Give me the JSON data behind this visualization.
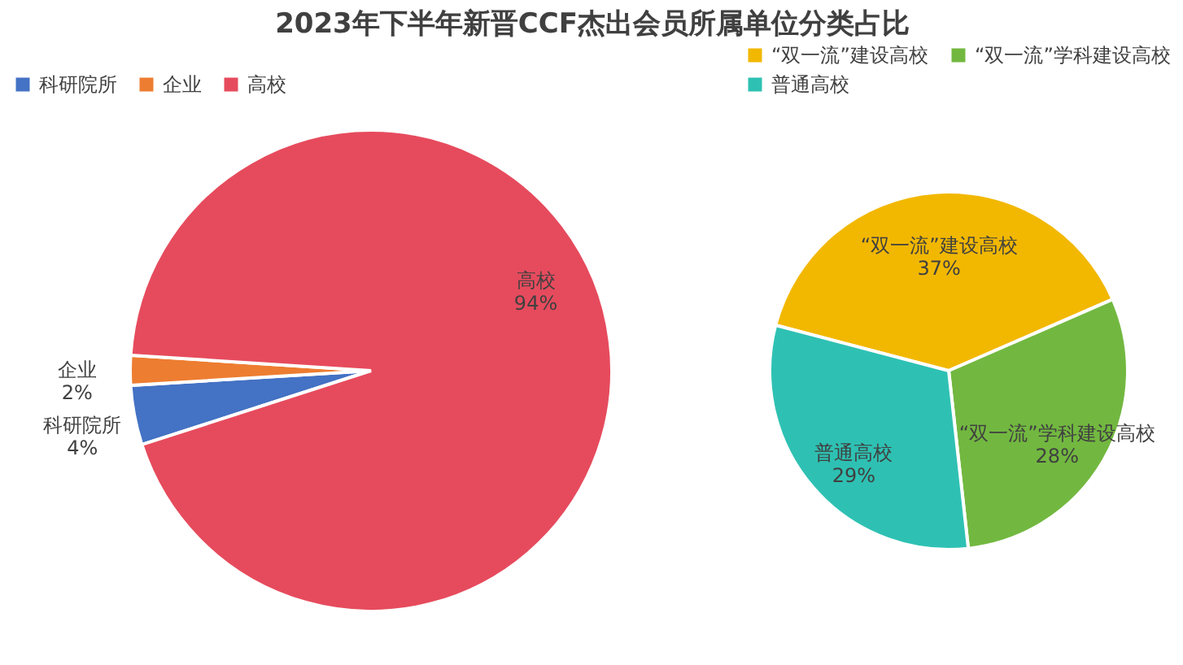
{
  "chart_data": [
    {
      "type": "pie",
      "title": "2023年下半年新晋CCF杰出会员所属单位分类占比",
      "legend": "top",
      "categories": [
        "科研院所",
        "企业",
        "高校"
      ],
      "values": [
        4,
        2,
        94
      ],
      "value_labels": [
        "4%",
        "2%",
        "94%"
      ],
      "colors": [
        "#4472c4",
        "#ed7d31",
        "#e64b5d"
      ]
    },
    {
      "type": "pie",
      "legend": "top",
      "categories": [
        "“双一流”建设高校",
        "“双一流”学科建设高校",
        "普通高校"
      ],
      "values": [
        37,
        28,
        29
      ],
      "value_labels": [
        "37%",
        "28%",
        "29%"
      ],
      "colors": [
        "#f2b800",
        "#72b840",
        "#2ec1b3"
      ]
    }
  ]
}
